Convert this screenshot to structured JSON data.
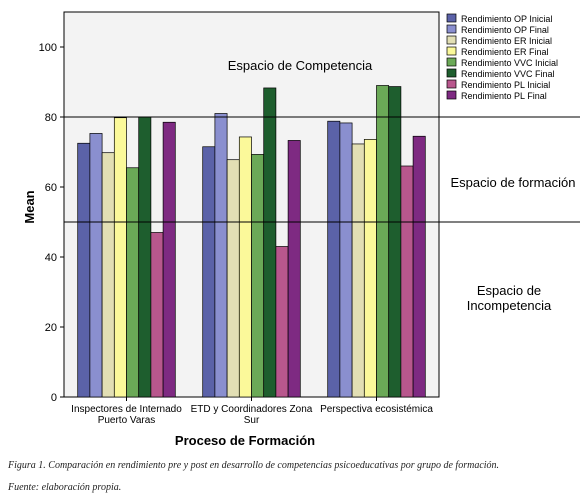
{
  "chart_data": {
    "type": "bar",
    "ylabel": "Mean",
    "xlabel": "Proceso de Formación",
    "ylim": [
      0,
      110
    ],
    "yticks": [
      0,
      20,
      40,
      60,
      80,
      100
    ],
    "grid": false,
    "legend_position": "right",
    "reference_lines": [
      50,
      80
    ],
    "categories": [
      [
        "Inspectores de Internado",
        "Puerto Varas"
      ],
      [
        "ETD y Coordinadores Zona",
        "Sur"
      ],
      [
        "Perspectiva ecosistémica"
      ]
    ],
    "series": [
      {
        "name": "Rendimiento OP Inicial",
        "color": "#5b62a8",
        "values": [
          72.5,
          71.5,
          78.8
        ]
      },
      {
        "name": "Rendimiento OP Final",
        "color": "#8a8fcf",
        "values": [
          75.3,
          81.0,
          78.3
        ]
      },
      {
        "name": "Rendimiento ER Inicial",
        "color": "#e2dfb4",
        "values": [
          69.8,
          67.8,
          72.3
        ]
      },
      {
        "name": "Rendimiento ER Final",
        "color": "#fbf99a",
        "values": [
          79.8,
          74.3,
          73.6
        ]
      },
      {
        "name": "Rendimiento VVC Inicial",
        "color": "#6ba957",
        "values": [
          65.5,
          69.3,
          89.0
        ]
      },
      {
        "name": "Rendimiento VVC Final",
        "color": "#1e5e2e",
        "values": [
          80.0,
          88.3,
          88.7
        ]
      },
      {
        "name": "Rendimiento PL Inicial",
        "color": "#b8578d",
        "values": [
          47.0,
          43.0,
          66.0
        ]
      },
      {
        "name": "Rendimiento PL Final",
        "color": "#7e2a82",
        "values": [
          78.5,
          73.3,
          74.5
        ]
      }
    ]
  },
  "zones": {
    "competencia": "Espacio de Competencia",
    "formacion": "Espacio de formación",
    "incompetencia_line1": "Espacio de",
    "incompetencia_line2": "Incompetencia"
  },
  "captions": {
    "figure": "Figura 1. Comparación en rendimiento pre y post en desarrollo de competencias psicoeducativas por grupo de formación.",
    "source": "Fuente: elaboración propia."
  }
}
